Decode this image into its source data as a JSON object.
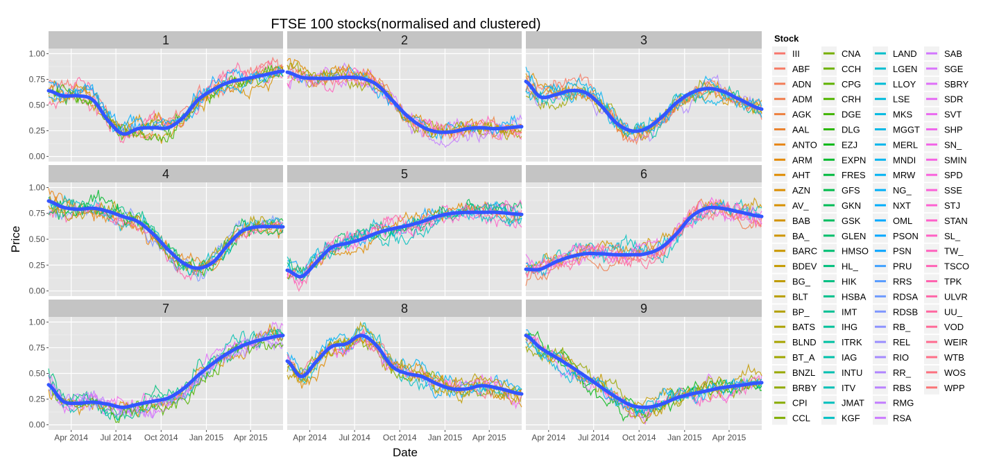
{
  "chart_data": {
    "type": "line",
    "title": "FTSE 100 stocks(normalised and clustered)",
    "xlabel": "Date",
    "ylabel": "Price",
    "xlim": [
      "2014-02-14",
      "2015-06-06"
    ],
    "ylim": [
      -0.05,
      1.05
    ],
    "x_ticks": [
      {
        "date": "2014-04-01",
        "label": "Apr 2014"
      },
      {
        "date": "2014-07-01",
        "label": "Jul 2014"
      },
      {
        "date": "2014-10-01",
        "label": "Oct 2014"
      },
      {
        "date": "2015-01-01",
        "label": "Jan 2015"
      },
      {
        "date": "2015-04-01",
        "label": "Apr 2015"
      }
    ],
    "y_ticks": [
      "0.00",
      "0.25",
      "0.50",
      "0.75",
      "1.00"
    ],
    "grid": true,
    "smooth_color": "#3355ff",
    "smooth_x": [
      "2014-02-14",
      "2014-03-15",
      "2014-04-15",
      "2014-05-15",
      "2014-06-15",
      "2014-07-15",
      "2014-08-15",
      "2014-09-15",
      "2014-10-15",
      "2014-11-15",
      "2014-12-15",
      "2015-01-15",
      "2015-02-15",
      "2015-03-15",
      "2015-04-15",
      "2015-06-06"
    ],
    "panels": [
      {
        "label": "1",
        "smooth": [
          0.64,
          0.59,
          0.59,
          0.55,
          0.35,
          0.22,
          0.27,
          0.28,
          0.28,
          0.38,
          0.55,
          0.65,
          0.72,
          0.75,
          0.78,
          0.83
        ]
      },
      {
        "label": "2",
        "smooth": [
          0.82,
          0.77,
          0.76,
          0.76,
          0.77,
          0.76,
          0.7,
          0.55,
          0.4,
          0.29,
          0.24,
          0.24,
          0.27,
          0.28,
          0.27,
          0.29
        ]
      },
      {
        "label": "3",
        "smooth": [
          0.73,
          0.58,
          0.6,
          0.64,
          0.62,
          0.5,
          0.33,
          0.25,
          0.27,
          0.38,
          0.52,
          0.62,
          0.66,
          0.64,
          0.57,
          0.46
        ]
      },
      {
        "label": "4",
        "smooth": [
          0.87,
          0.81,
          0.79,
          0.8,
          0.77,
          0.72,
          0.67,
          0.55,
          0.4,
          0.27,
          0.22,
          0.28,
          0.45,
          0.58,
          0.62,
          0.62
        ]
      },
      {
        "label": "5",
        "smooth": [
          0.2,
          0.14,
          0.28,
          0.42,
          0.46,
          0.5,
          0.56,
          0.6,
          0.63,
          0.67,
          0.72,
          0.75,
          0.76,
          0.76,
          0.76,
          0.74
        ]
      },
      {
        "label": "6",
        "smooth": [
          0.21,
          0.21,
          0.28,
          0.33,
          0.36,
          0.36,
          0.35,
          0.35,
          0.36,
          0.42,
          0.55,
          0.72,
          0.8,
          0.8,
          0.77,
          0.72
        ]
      },
      {
        "label": "7",
        "smooth": [
          0.39,
          0.23,
          0.21,
          0.22,
          0.2,
          0.17,
          0.2,
          0.23,
          0.26,
          0.35,
          0.48,
          0.6,
          0.7,
          0.77,
          0.82,
          0.87
        ]
      },
      {
        "label": "8",
        "smooth": [
          0.62,
          0.47,
          0.62,
          0.76,
          0.79,
          0.87,
          0.77,
          0.57,
          0.5,
          0.47,
          0.4,
          0.35,
          0.35,
          0.38,
          0.36,
          0.3
        ]
      },
      {
        "label": "9",
        "smooth": [
          0.87,
          0.75,
          0.66,
          0.57,
          0.47,
          0.37,
          0.27,
          0.19,
          0.17,
          0.2,
          0.26,
          0.3,
          0.33,
          0.36,
          0.38,
          0.41
        ]
      }
    ],
    "legend": {
      "title": "Stock",
      "placement": "right",
      "items": [
        "III",
        "ABF",
        "ADN",
        "ADM",
        "AGK",
        "AAL",
        "ANTO",
        "ARM",
        "AHT",
        "AZN",
        "AV_",
        "BAB",
        "BA_",
        "BARC",
        "BDEV",
        "BG_",
        "BLT",
        "BP_",
        "BATS",
        "BLND",
        "BT_A",
        "BNZL",
        "BRBY",
        "CPI",
        "CCL",
        "CNA",
        "CCH",
        "CPG",
        "CRH",
        "DGE",
        "DLG",
        "EZJ",
        "EXPN",
        "FRES",
        "GFS",
        "GKN",
        "GSK",
        "GLEN",
        "HMSO",
        "HL_",
        "HIK",
        "HSBA",
        "IMT",
        "IHG",
        "ITRK",
        "IAG",
        "INTU",
        "ITV",
        "JMAT",
        "KGF",
        "LAND",
        "LGEN",
        "LLOY",
        "LSE",
        "MKS",
        "MGGT",
        "MERL",
        "MNDI",
        "MRW",
        "NG_",
        "NXT",
        "OML",
        "PSON",
        "PSN",
        "PRU",
        "RRS",
        "RDSA",
        "RDSB",
        "RB_",
        "REL",
        "RIO",
        "RR_",
        "RBS",
        "RMG",
        "RSA",
        "SAB",
        "SGE",
        "SBRY",
        "SDR",
        "SVT",
        "SHP",
        "SN_",
        "SMIN",
        "SPD",
        "SSE",
        "STJ",
        "STAN",
        "SL_",
        "TW_",
        "TSCO",
        "TPK",
        "ULVR",
        "UU_",
        "VOD",
        "WEIR",
        "WTB",
        "WOS",
        "WPP"
      ]
    }
  }
}
